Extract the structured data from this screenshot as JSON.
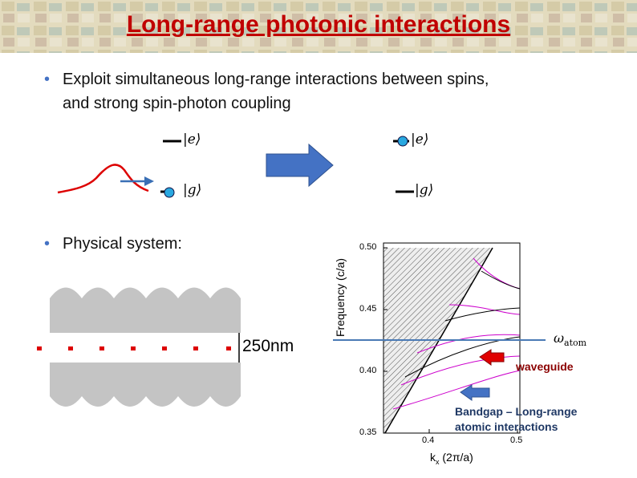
{
  "title": "Long-range photonic interactions",
  "bullets": [
    {
      "lines": [
        "Exploit simultaneous long-range interactions between spins,",
        "and strong spin-photon coupling"
      ]
    },
    {
      "lines": [
        "Physical system:"
      ]
    }
  ],
  "level_diagram": {
    "left_excited": "|e⟩",
    "left_ground": "|g⟩",
    "right_excited": "|e⟩",
    "right_ground": "|g⟩"
  },
  "waveguide_figure": {
    "gap_label": "250nm"
  },
  "band_plot": {
    "y_axis_label": "Frequency (c/a)",
    "x_axis_label": {
      "main": "k",
      "sub": "x",
      "unit": "(2π/a)"
    },
    "y_tick_labels": [
      "0.50",
      "0.45",
      "0.40",
      "0.35"
    ],
    "x_tick_labels": [
      "0.4",
      "0.5"
    ],
    "atom_label": {
      "symbol": "ω",
      "sub": "atom"
    },
    "waveguide_note": "waveguide",
    "bandgap_note": [
      "Bandgap – Long-range",
      "atomic interactions"
    ]
  }
}
